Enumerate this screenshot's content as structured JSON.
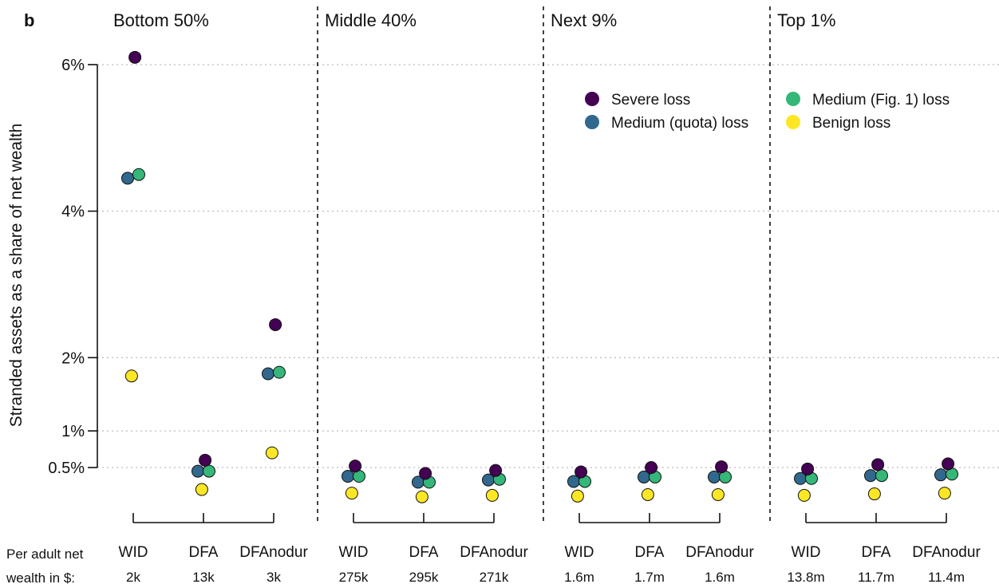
{
  "chart_data": {
    "type": "scatter",
    "panel_label": "b",
    "ylabel": "Stranded assets as a share of net wealth",
    "yticks": [
      {
        "value": 0.5,
        "label": "0.5%"
      },
      {
        "value": 1,
        "label": "1%"
      },
      {
        "value": 2,
        "label": "2%"
      },
      {
        "value": 4,
        "label": "4%"
      },
      {
        "value": 6,
        "label": "6%"
      }
    ],
    "ylim": [
      -0.7,
      6.5
    ],
    "footer_label_line1": "Per adult net",
    "footer_label_line2": "wealth in $:",
    "legend_position": "top-right",
    "series": [
      {
        "name": "Severe loss",
        "color": "#440154"
      },
      {
        "name": "Medium (quota) loss",
        "color": "#31688e"
      },
      {
        "name": "Medium (Fig. 1) loss",
        "color": "#35b779"
      },
      {
        "name": "Benign loss",
        "color": "#fde725"
      }
    ],
    "groups": [
      {
        "title": "Bottom 50%",
        "categories": [
          {
            "label": "WID",
            "wealth": "2k",
            "severe": 6.1,
            "medium_quota": 4.45,
            "medium_fig1": 4.5,
            "benign": 1.75
          },
          {
            "label": "DFA",
            "wealth": "13k",
            "severe": 0.6,
            "medium_quota": 0.45,
            "medium_fig1": 0.45,
            "benign": 0.2
          },
          {
            "label": "DFAnodur",
            "wealth": "3k",
            "severe": 2.45,
            "medium_quota": 1.78,
            "medium_fig1": 1.8,
            "benign": 0.7
          }
        ]
      },
      {
        "title": "Middle 40%",
        "categories": [
          {
            "label": "WID",
            "wealth": "275k",
            "severe": 0.52,
            "medium_quota": 0.38,
            "medium_fig1": 0.38,
            "benign": 0.15
          },
          {
            "label": "DFA",
            "wealth": "295k",
            "severe": 0.42,
            "medium_quota": 0.3,
            "medium_fig1": 0.3,
            "benign": 0.1
          },
          {
            "label": "DFAnodur",
            "wealth": "271k",
            "severe": 0.46,
            "medium_quota": 0.33,
            "medium_fig1": 0.34,
            "benign": 0.12
          }
        ]
      },
      {
        "title": "Next 9%",
        "categories": [
          {
            "label": "WID",
            "wealth": "1.6m",
            "severe": 0.44,
            "medium_quota": 0.31,
            "medium_fig1": 0.31,
            "benign": 0.11
          },
          {
            "label": "DFA",
            "wealth": "1.7m",
            "severe": 0.5,
            "medium_quota": 0.37,
            "medium_fig1": 0.37,
            "benign": 0.13
          },
          {
            "label": "DFAnodur",
            "wealth": "1.6m",
            "severe": 0.51,
            "medium_quota": 0.37,
            "medium_fig1": 0.37,
            "benign": 0.13
          }
        ]
      },
      {
        "title": "Top 1%",
        "categories": [
          {
            "label": "WID",
            "wealth": "13.8m",
            "severe": 0.48,
            "medium_quota": 0.35,
            "medium_fig1": 0.35,
            "benign": 0.12
          },
          {
            "label": "DFA",
            "wealth": "11.7m",
            "severe": 0.54,
            "medium_quota": 0.39,
            "medium_fig1": 0.39,
            "benign": 0.14
          },
          {
            "label": "DFAnodur",
            "wealth": "11.4m",
            "severe": 0.55,
            "medium_quota": 0.4,
            "medium_fig1": 0.41,
            "benign": 0.15
          }
        ]
      }
    ]
  }
}
